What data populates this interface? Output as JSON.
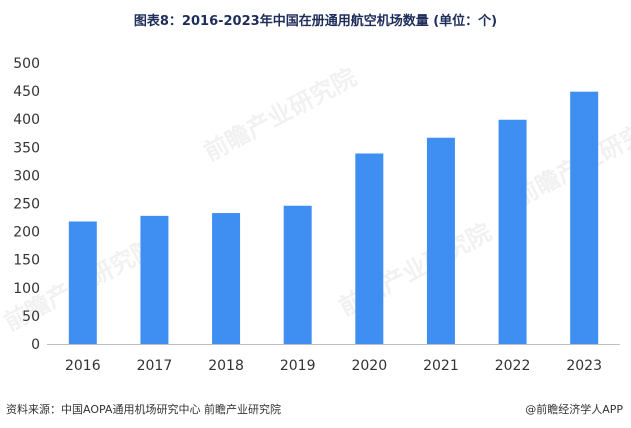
{
  "chart_title": "图表8：2016-2023年中国在册通用航空机场数量 (单位：个)",
  "source_text": "资料来源：中国AOPA通用机场研究中心 前瞻产业研究院",
  "brand_text": "@前瞻经济学人APP",
  "watermark_text": "前瞻产业研究院",
  "colors": {
    "bar": "#3f8ff2",
    "axis": "#bfbfbf",
    "text": "#333333"
  },
  "chart_data": {
    "type": "bar",
    "title": "2016-2023年中国在册通用航空机场数量",
    "xlabel": "",
    "ylabel": "个",
    "categories": [
      "2016",
      "2017",
      "2018",
      "2019",
      "2020",
      "2021",
      "2022",
      "2023"
    ],
    "values": [
      218,
      228,
      233,
      246,
      339,
      367,
      399,
      449
    ],
    "ylim": [
      0,
      500
    ],
    "yticks": [
      0,
      50,
      100,
      150,
      200,
      250,
      300,
      350,
      400,
      450,
      500
    ],
    "grid": false
  }
}
